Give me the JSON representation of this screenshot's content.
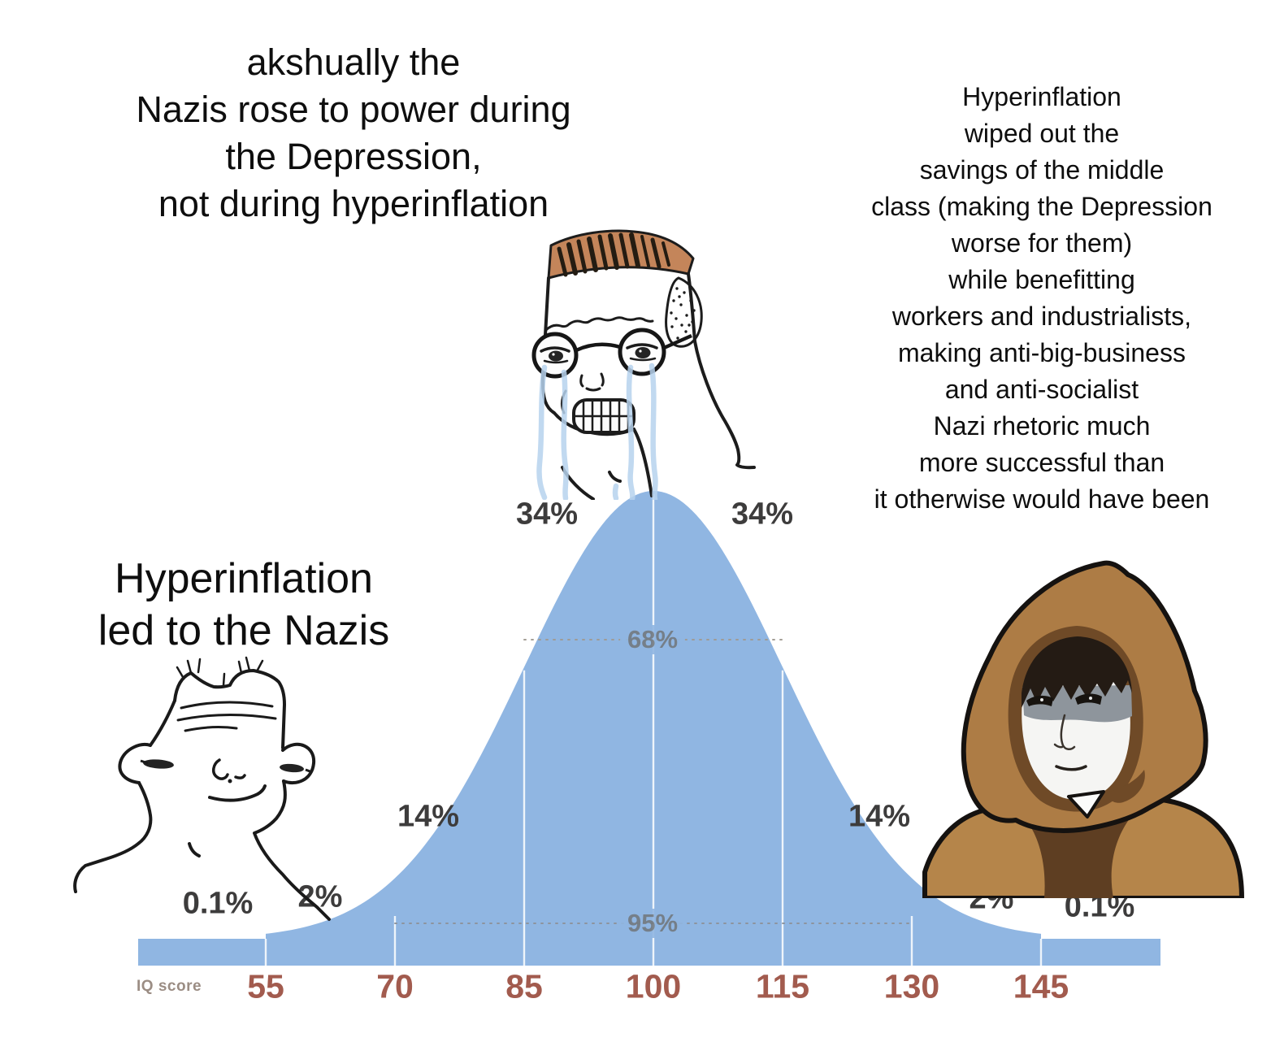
{
  "meme": {
    "mid_caption": {
      "lines": [
        "akshually the",
        "Nazis rose to power during",
        "the Depression,",
        "not during hyperinflation"
      ]
    },
    "right_caption": {
      "lines": [
        "Hyperinflation",
        "wiped out the",
        "savings of the middle",
        "class (making the Depression",
        "worse for them)",
        "while benefitting",
        "workers and industrialists,",
        "making anti-big-business",
        "and anti-socialist",
        "Nazi rhetoric much",
        "more successful than",
        "it otherwise would have been"
      ]
    },
    "left_caption": {
      "lines": [
        "Hyperinflation",
        "led to the Nazis"
      ]
    }
  },
  "chart_data": {
    "type": "area",
    "title": "",
    "xlabel": "IQ score",
    "ylabel": "",
    "x_ticks": [
      55,
      70,
      85,
      100,
      115,
      130,
      145
    ],
    "mean": 100,
    "sd": 15,
    "segment_percentages": [
      "0.1%",
      "2%",
      "14%",
      "34%",
      "34%",
      "14%",
      "2%",
      "0.1%"
    ],
    "interval_labels": [
      {
        "label": "68%",
        "from": 85,
        "to": 115
      },
      {
        "label": "95%",
        "from": 70,
        "to": 130
      }
    ],
    "grid": false,
    "legend_position": "none"
  },
  "colors": {
    "background": "#ffffff",
    "curve_blue": "#90b6e2",
    "axis_label": "#a25b4e",
    "percent_text": "#3d3c3c",
    "interval_text": "#737a80",
    "tear_blue": "#b7d3ee",
    "hood_brown": "#ad7c45",
    "hood_shadow": "#6f4a27",
    "shoulder_tan": "#b5854a",
    "chest_brown": "#5e3e22",
    "hair_tan": "#c4855a"
  }
}
